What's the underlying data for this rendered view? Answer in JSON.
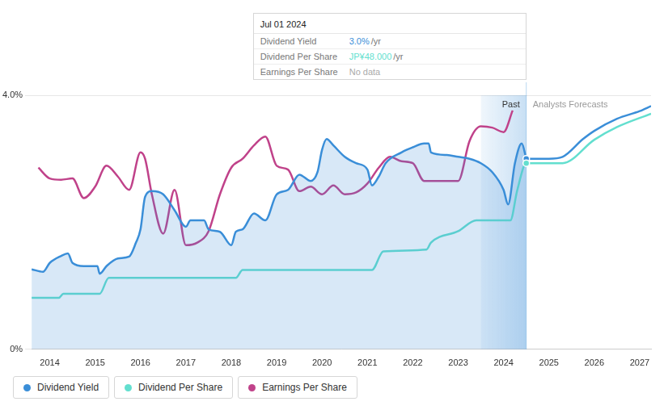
{
  "chart_data": {
    "type": "line",
    "xlim": [
      2013.6,
      2027.25
    ],
    "xticks": [
      2014,
      2015,
      2016,
      2017,
      2018,
      2019,
      2020,
      2021,
      2022,
      2023,
      2024,
      2025,
      2026,
      2027
    ],
    "ylim": [
      0,
      4
    ],
    "yticks": [
      {
        "value": 0,
        "label": "0%"
      },
      {
        "value": 4,
        "label": "4.0%"
      }
    ],
    "grid": true,
    "regions": [
      {
        "label": "Past",
        "from": 2023.5,
        "to": 2024.5
      },
      {
        "label": "Analysts Forecasts",
        "from": 2024.5,
        "to": 2027.25
      }
    ],
    "tooltip": {
      "title": "Jul 01 2024",
      "x": 2024.5,
      "rows": [
        {
          "label": "Dividend Yield",
          "value": "3.0%",
          "unit": "/yr"
        },
        {
          "label": "Dividend Per Share",
          "value": "JP¥48.000",
          "unit": "/yr"
        },
        {
          "label": "Earnings Per Share",
          "value": "No data"
        }
      ]
    },
    "series": [
      {
        "name": "Dividend Yield",
        "color": "#3a8ed8",
        "x": [
          2013.6,
          2013.85,
          2014.0,
          2014.25,
          2014.4,
          2014.5,
          2014.75,
          2014.95,
          2015.05,
          2015.1,
          2015.25,
          2015.5,
          2015.75,
          2015.9,
          2016.0,
          2016.1,
          2016.25,
          2016.5,
          2016.75,
          2017.0,
          2017.1,
          2017.4,
          2017.5,
          2017.75,
          2018.0,
          2018.1,
          2018.25,
          2018.5,
          2018.75,
          2019.0,
          2019.25,
          2019.5,
          2019.75,
          2019.9,
          2020.0,
          2020.1,
          2020.25,
          2020.5,
          2020.75,
          2021.0,
          2021.1,
          2021.25,
          2021.4,
          2021.75,
          2022.0,
          2022.25,
          2022.35,
          2022.4,
          2022.75,
          2023.0,
          2023.25,
          2023.5,
          2023.75,
          2024.0,
          2024.1,
          2024.25,
          2024.4,
          2024.5,
          2025.0,
          2025.3,
          2025.75,
          2026.0,
          2026.5,
          2027.0,
          2027.25
        ],
        "values": [
          1.26,
          1.22,
          1.36,
          1.47,
          1.51,
          1.36,
          1.31,
          1.31,
          1.31,
          1.19,
          1.31,
          1.43,
          1.46,
          1.68,
          1.89,
          2.4,
          2.49,
          2.44,
          2.19,
          1.93,
          2.03,
          2.03,
          1.89,
          1.85,
          1.64,
          1.85,
          1.89,
          2.14,
          2.03,
          2.44,
          2.51,
          2.75,
          2.65,
          2.79,
          3.14,
          3.31,
          3.21,
          3.03,
          2.93,
          2.83,
          2.58,
          2.72,
          2.93,
          3.1,
          3.18,
          3.24,
          3.24,
          3.1,
          3.06,
          3.03,
          3.0,
          2.93,
          2.79,
          2.51,
          2.28,
          2.93,
          3.24,
          3.0,
          3.0,
          3.03,
          3.31,
          3.44,
          3.63,
          3.75,
          3.83
        ]
      },
      {
        "name": "Dividend Per Share",
        "color": "#63dfcf",
        "x": [
          2013.6,
          2014.2,
          2014.3,
          2015.1,
          2015.3,
          2018.1,
          2018.25,
          2021.1,
          2021.35,
          2022.3,
          2022.4,
          2023.0,
          2023.4,
          2024.15,
          2024.3,
          2024.5,
          2025.3,
          2026.0,
          2026.5,
          2027.25
        ],
        "values": [
          0.81,
          0.81,
          0.875,
          0.875,
          1.125,
          1.125,
          1.25,
          1.25,
          1.54,
          1.57,
          1.68,
          1.86,
          2.03,
          2.03,
          2.5,
          2.93,
          2.93,
          3.3,
          3.5,
          3.71
        ]
      },
      {
        "name": "Earnings Per Share",
        "color": "#c0428a",
        "x": [
          2013.75,
          2014.0,
          2014.25,
          2014.5,
          2014.75,
          2015.0,
          2015.25,
          2015.5,
          2015.75,
          2016.0,
          2016.1,
          2016.25,
          2016.5,
          2016.75,
          2017.0,
          2017.25,
          2017.5,
          2017.75,
          2018.0,
          2018.25,
          2018.5,
          2018.75,
          2019.0,
          2019.25,
          2019.5,
          2019.75,
          2020.0,
          2020.25,
          2020.5,
          2020.75,
          2021.0,
          2021.25,
          2021.5,
          2021.75,
          2022.0,
          2022.25,
          2022.5,
          2023.0,
          2023.25,
          2023.5,
          2023.75,
          2024.0,
          2024.2
        ],
        "values": [
          2.86,
          2.69,
          2.67,
          2.69,
          2.38,
          2.56,
          2.89,
          2.72,
          2.51,
          3.1,
          3.0,
          2.44,
          1.82,
          2.51,
          1.64,
          1.68,
          1.86,
          2.44,
          2.86,
          3.0,
          3.21,
          3.35,
          2.89,
          2.83,
          2.49,
          2.56,
          2.44,
          2.58,
          2.44,
          2.47,
          2.61,
          2.86,
          3.03,
          2.96,
          2.93,
          2.65,
          2.65,
          2.65,
          3.28,
          3.51,
          3.49,
          3.42,
          3.76
        ]
      }
    ]
  }
}
